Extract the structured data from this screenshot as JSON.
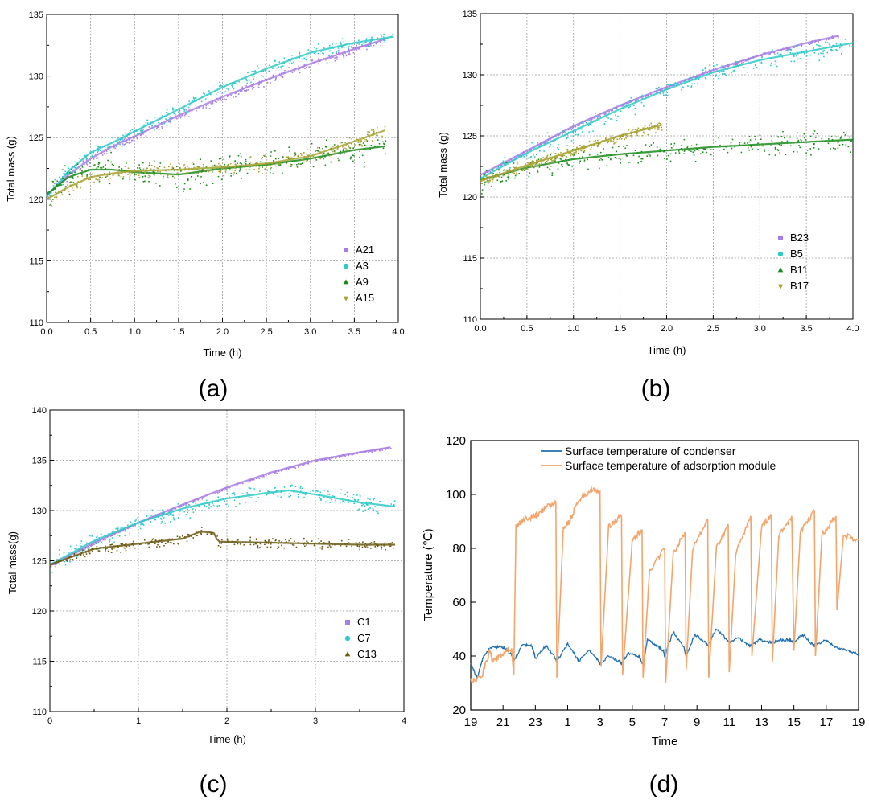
{
  "colors": {
    "purple": "#a97de6",
    "cyan": "#2ec9c9",
    "green": "#1a8c1a",
    "olive": "#a8a232",
    "brown": "#6b5a12",
    "blue": "#1f6fb0",
    "orange": "#f2a56c"
  },
  "chart_data": [
    {
      "panel": "(a)",
      "type": "scatter",
      "xlabel": "Time (h)",
      "ylabel": "Total mass (g)",
      "xlim": [
        0,
        4
      ],
      "ylim": [
        110,
        135
      ],
      "xticks": [
        "0.0",
        "0.5",
        "1.0",
        "1.5",
        "2.0",
        "2.5",
        "3.0",
        "3.5",
        "4.0"
      ],
      "yticks": [
        "110",
        "115",
        "120",
        "125",
        "130",
        "135"
      ],
      "grid": true,
      "legend_position": "bottom-right",
      "series": [
        {
          "name": "A21",
          "marker": "square",
          "color": "#a97de6",
          "x": [
            0,
            0.25,
            0.5,
            0.75,
            1.0,
            1.5,
            2.0,
            2.5,
            3.0,
            3.5,
            3.85
          ],
          "y": [
            120.3,
            122.0,
            123.3,
            124.3,
            125.1,
            126.8,
            128.3,
            129.7,
            131.0,
            132.2,
            133.0
          ]
        },
        {
          "name": "A3",
          "marker": "circle",
          "color": "#2ec9c9",
          "x": [
            0,
            0.25,
            0.5,
            0.75,
            1.0,
            1.5,
            2.0,
            2.5,
            3.0,
            3.5,
            3.95
          ],
          "y": [
            120.2,
            122.3,
            123.8,
            124.6,
            125.5,
            127.3,
            129.1,
            130.6,
            131.9,
            132.7,
            133.2
          ]
        },
        {
          "name": "A9",
          "marker": "triangle-up",
          "color": "#1a8c1a",
          "x": [
            0,
            0.25,
            0.5,
            0.75,
            1.0,
            1.5,
            2.0,
            2.5,
            3.0,
            3.5,
            3.85
          ],
          "y": [
            120.4,
            121.8,
            122.4,
            122.4,
            122.2,
            122.0,
            122.5,
            122.8,
            123.3,
            124.0,
            124.3
          ]
        },
        {
          "name": "A15",
          "marker": "triangle-down",
          "color": "#a8a232",
          "x": [
            0,
            0.25,
            0.5,
            0.75,
            1.0,
            1.5,
            2.0,
            2.5,
            3.0,
            3.5,
            3.85
          ],
          "y": [
            120.0,
            121.0,
            121.8,
            122.1,
            122.3,
            122.4,
            122.6,
            122.9,
            123.5,
            124.7,
            125.6
          ]
        }
      ]
    },
    {
      "panel": "(b)",
      "type": "scatter",
      "xlabel": "Time (h)",
      "ylabel": "Total mass (g)",
      "xlim": [
        0,
        4
      ],
      "ylim": [
        110,
        135
      ],
      "xticks": [
        "0.0",
        "0.5",
        "1.0",
        "1.5",
        "2.0",
        "2.5",
        "3.0",
        "3.5",
        "4.0"
      ],
      "yticks": [
        "110",
        "115",
        "120",
        "125",
        "130",
        "135"
      ],
      "grid": true,
      "legend_position": "bottom-right",
      "series": [
        {
          "name": "B23",
          "marker": "square",
          "color": "#a97de6",
          "x": [
            0,
            0.5,
            1.0,
            1.5,
            2.0,
            2.5,
            3.0,
            3.5,
            3.85
          ],
          "y": [
            121.8,
            123.8,
            125.8,
            127.5,
            129.0,
            130.4,
            131.6,
            132.6,
            133.2
          ]
        },
        {
          "name": "B5",
          "marker": "circle",
          "color": "#2ec9c9",
          "x": [
            0,
            0.5,
            1.0,
            1.5,
            2.0,
            2.5,
            3.0,
            3.5,
            4.0
          ],
          "y": [
            121.5,
            123.6,
            125.4,
            127.2,
            128.8,
            130.2,
            131.2,
            131.9,
            132.6
          ]
        },
        {
          "name": "B11",
          "marker": "triangle-up",
          "color": "#1a8c1a",
          "x": [
            0,
            0.5,
            1.0,
            1.5,
            2.0,
            2.5,
            3.0,
            3.5,
            4.0
          ],
          "y": [
            121.4,
            122.4,
            123.1,
            123.5,
            123.8,
            124.1,
            124.3,
            124.5,
            124.7
          ]
        },
        {
          "name": "B17",
          "marker": "triangle-down",
          "color": "#a8a232",
          "x": [
            0,
            0.5,
            1.0,
            1.5,
            1.95
          ],
          "y": [
            121.3,
            122.6,
            123.8,
            125.0,
            125.9
          ]
        }
      ]
    },
    {
      "panel": "(c)",
      "type": "scatter",
      "xlabel": "Time (h)",
      "ylabel": "Total mass(g)",
      "xlim": [
        0,
        4
      ],
      "ylim": [
        110,
        140
      ],
      "xticks": [
        "0",
        "1",
        "2",
        "3",
        "4"
      ],
      "yticks": [
        "110",
        "115",
        "120",
        "125",
        "130",
        "135",
        "140"
      ],
      "grid": true,
      "legend_position": "bottom-right",
      "series": [
        {
          "name": "C1",
          "marker": "square",
          "color": "#a97de6",
          "x": [
            0,
            0.5,
            1.0,
            1.5,
            2.0,
            2.5,
            3.0,
            3.5,
            3.85
          ],
          "y": [
            124.5,
            126.8,
            128.8,
            130.6,
            132.3,
            133.8,
            135.0,
            135.8,
            136.3
          ]
        },
        {
          "name": "C7",
          "marker": "circle",
          "color": "#2ec9c9",
          "x": [
            0,
            0.5,
            1.0,
            1.5,
            2.0,
            2.5,
            2.7,
            3.0,
            3.5,
            3.9
          ],
          "y": [
            124.6,
            127.0,
            128.8,
            130.2,
            131.2,
            131.8,
            132.0,
            131.6,
            130.8,
            130.4
          ]
        },
        {
          "name": "C13",
          "marker": "triangle-up",
          "color": "#6b5a12",
          "x": [
            0,
            0.5,
            1.0,
            1.5,
            1.7,
            1.85,
            1.9,
            2.5,
            3.0,
            3.5,
            3.9
          ],
          "y": [
            124.6,
            126.2,
            126.7,
            127.2,
            127.9,
            127.8,
            126.9,
            126.8,
            126.7,
            126.6,
            126.6
          ]
        }
      ]
    },
    {
      "panel": "(d)",
      "type": "line",
      "xlabel": "Time",
      "ylabel": "Temperature (℃)",
      "xticks": [
        "19",
        "21",
        "23",
        "1",
        "3",
        "5",
        "7",
        "9",
        "11",
        "13",
        "15",
        "17",
        "19"
      ],
      "ylim": [
        20,
        120
      ],
      "yticks": [
        "20",
        "40",
        "60",
        "80",
        "100",
        "120"
      ],
      "grid": false,
      "legend_position": "top-center",
      "series": [
        {
          "name": "Surface temperature of condenser",
          "color": "#1f6fb0",
          "x": [
            0,
            0.3,
            0.6,
            0.9,
            1.3,
            1.6,
            1.95,
            2.0,
            2.4,
            2.8,
            2.95,
            3.0,
            3.5,
            3.95,
            4.0,
            4.5,
            4.95,
            5.0,
            5.5,
            5.95,
            6.0,
            6.4,
            6.9,
            7.0,
            7.3,
            7.8,
            8.0,
            8.2,
            8.6,
            8.95,
            9.0,
            9.4,
            9.9,
            10.0,
            10.4,
            10.9,
            11.0,
            11.4,
            11.9,
            12.0,
            12.4,
            12.9,
            13.0,
            13.4,
            13.9,
            14.0,
            14.4,
            14.8,
            15.0,
            15.4,
            15.9,
            16.0,
            16.5,
            17.0,
            17.5,
            18.0
          ],
          "y": [
            37,
            32,
            40,
            43,
            43.5,
            43,
            40,
            38,
            44,
            44,
            41,
            39,
            44,
            39,
            38,
            44.5,
            39,
            38,
            42,
            38,
            37,
            40,
            38,
            37,
            41,
            40,
            37,
            46,
            44,
            42,
            40,
            49,
            43,
            40,
            48,
            45,
            44,
            50,
            46,
            45,
            47,
            44,
            44,
            46,
            45,
            45,
            46,
            46,
            45,
            48,
            44,
            44,
            46,
            43,
            42,
            40.5
          ]
        },
        {
          "name": "Surface temperature of adsorption module",
          "color": "#f2a56c",
          "x": [
            0,
            0.5,
            0.9,
            1.0,
            1.4,
            1.9,
            2.0,
            2.1,
            2.5,
            3.0,
            3.2,
            3.6,
            3.95,
            4.0,
            4.3,
            4.6,
            5.0,
            5.6,
            6.0,
            6.05,
            6.4,
            7.0,
            7.05,
            7.5,
            7.95,
            8.0,
            8.3,
            9.0,
            9.05,
            9.4,
            9.95,
            10.0,
            10.3,
            11.0,
            11.05,
            11.4,
            11.95,
            12.0,
            12.3,
            13.0,
            13.05,
            13.5,
            13.95,
            14.0,
            14.3,
            14.9,
            15.0,
            15.3,
            15.95,
            16.0,
            16.3,
            16.95,
            17.0,
            17.3,
            18.0
          ],
          "y": [
            31,
            32,
            42,
            38,
            40,
            43,
            33,
            88,
            91,
            92,
            93,
            96,
            97,
            32,
            88,
            90,
            98,
            102,
            101,
            36,
            88,
            92,
            33,
            83,
            87,
            32,
            72,
            80,
            30,
            78,
            86,
            35,
            80,
            91,
            32,
            80,
            89,
            34,
            78,
            92,
            40,
            88,
            92,
            38,
            85,
            92,
            42,
            86,
            94,
            40,
            85,
            92,
            57,
            85,
            83
          ]
        }
      ]
    }
  ]
}
